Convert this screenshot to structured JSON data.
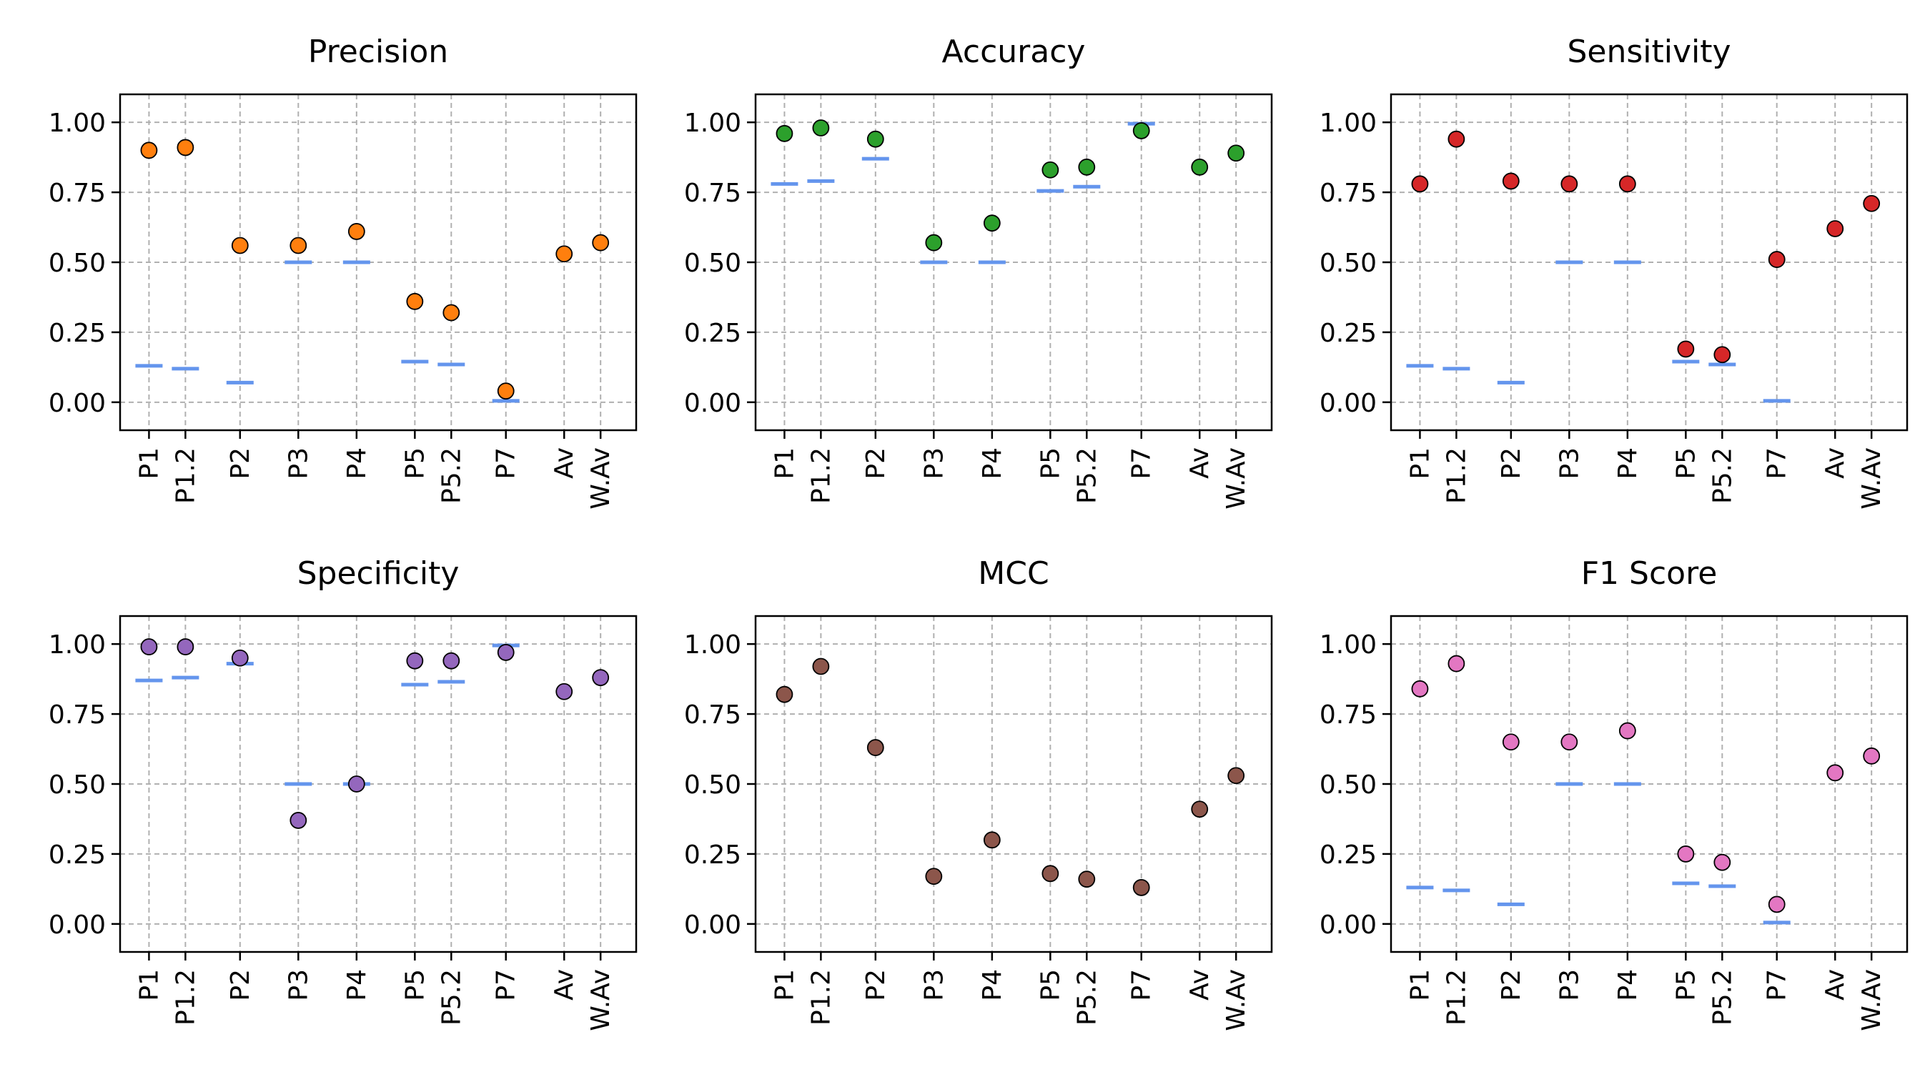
{
  "chart_data": [
    {
      "type": "scatter",
      "title": "Precision",
      "color": "#ff7f0e",
      "categories": [
        "P1",
        "P1.2",
        "P2",
        "P3",
        "P4",
        "P5",
        "P5.2",
        "P7",
        "Av",
        "W.Av"
      ],
      "x": [
        0,
        1,
        2.5,
        4.1,
        5.7,
        7.3,
        8.3,
        9.8,
        11.4,
        12.4
      ],
      "values": [
        0.9,
        0.91,
        0.56,
        0.56,
        0.61,
        0.36,
        0.32,
        0.04,
        0.53,
        0.57
      ],
      "baseline": [
        0.13,
        0.12,
        0.07,
        0.5,
        0.5,
        0.145,
        0.135,
        0.005,
        null,
        null
      ],
      "ylim": [
        -0.1,
        1.1
      ],
      "yticks": [
        "0.00",
        "0.25",
        "0.50",
        "0.75",
        "1.00"
      ],
      "ytick_values": [
        0,
        0.25,
        0.5,
        0.75,
        1.0
      ],
      "grid": true
    },
    {
      "type": "scatter",
      "title": "Accuracy",
      "color": "#2ca02c",
      "categories": [
        "P1",
        "P1.2",
        "P2",
        "P3",
        "P4",
        "P5",
        "P5.2",
        "P7",
        "Av",
        "W.Av"
      ],
      "x": [
        0,
        1,
        2.5,
        4.1,
        5.7,
        7.3,
        8.3,
        9.8,
        11.4,
        12.4
      ],
      "values": [
        0.96,
        0.98,
        0.94,
        0.57,
        0.64,
        0.83,
        0.84,
        0.97,
        0.84,
        0.89
      ],
      "baseline": [
        0.78,
        0.79,
        0.87,
        0.5,
        0.5,
        0.755,
        0.77,
        0.995,
        null,
        null
      ],
      "ylim": [
        -0.1,
        1.1
      ],
      "yticks": [
        "0.00",
        "0.25",
        "0.50",
        "0.75",
        "1.00"
      ],
      "ytick_values": [
        0,
        0.25,
        0.5,
        0.75,
        1.0
      ],
      "grid": true
    },
    {
      "type": "scatter",
      "title": "Sensitivity",
      "color": "#d62728",
      "categories": [
        "P1",
        "P1.2",
        "P2",
        "P3",
        "P4",
        "P5",
        "P5.2",
        "P7",
        "Av",
        "W.Av"
      ],
      "x": [
        0,
        1,
        2.5,
        4.1,
        5.7,
        7.3,
        8.3,
        9.8,
        11.4,
        12.4
      ],
      "values": [
        0.78,
        0.94,
        0.79,
        0.78,
        0.78,
        0.19,
        0.17,
        0.51,
        0.62,
        0.71
      ],
      "baseline": [
        0.13,
        0.12,
        0.07,
        0.5,
        0.5,
        0.145,
        0.135,
        0.005,
        null,
        null
      ],
      "ylim": [
        -0.1,
        1.1
      ],
      "yticks": [
        "0.00",
        "0.25",
        "0.50",
        "0.75",
        "1.00"
      ],
      "ytick_values": [
        0,
        0.25,
        0.5,
        0.75,
        1.0
      ],
      "grid": true
    },
    {
      "type": "scatter",
      "title": "Specificity",
      "color": "#9467bd",
      "categories": [
        "P1",
        "P1.2",
        "P2",
        "P3",
        "P4",
        "P5",
        "P5.2",
        "P7",
        "Av",
        "W.Av"
      ],
      "x": [
        0,
        1,
        2.5,
        4.1,
        5.7,
        7.3,
        8.3,
        9.8,
        11.4,
        12.4
      ],
      "values": [
        0.99,
        0.99,
        0.95,
        0.37,
        0.5,
        0.94,
        0.94,
        0.97,
        0.83,
        0.88
      ],
      "baseline": [
        0.87,
        0.88,
        0.93,
        0.5,
        0.5,
        0.855,
        0.865,
        0.995,
        null,
        null
      ],
      "ylim": [
        -0.1,
        1.1
      ],
      "yticks": [
        "0.00",
        "0.25",
        "0.50",
        "0.75",
        "1.00"
      ],
      "ytick_values": [
        0,
        0.25,
        0.5,
        0.75,
        1.0
      ],
      "grid": true
    },
    {
      "type": "scatter",
      "title": "MCC",
      "color": "#8c564b",
      "categories": [
        "P1",
        "P1.2",
        "P2",
        "P3",
        "P4",
        "P5",
        "P5.2",
        "P7",
        "Av",
        "W.Av"
      ],
      "x": [
        0,
        1,
        2.5,
        4.1,
        5.7,
        7.3,
        8.3,
        9.8,
        11.4,
        12.4
      ],
      "values": [
        0.82,
        0.92,
        0.63,
        0.17,
        0.3,
        0.18,
        0.16,
        0.13,
        0.41,
        0.53
      ],
      "baseline": [
        null,
        null,
        null,
        null,
        null,
        null,
        null,
        null,
        null,
        null
      ],
      "ylim": [
        -0.1,
        1.1
      ],
      "yticks": [
        "0.00",
        "0.25",
        "0.50",
        "0.75",
        "1.00"
      ],
      "ytick_values": [
        0,
        0.25,
        0.5,
        0.75,
        1.0
      ],
      "grid": true
    },
    {
      "type": "scatter",
      "title": "F1 Score",
      "color": "#e377c2",
      "categories": [
        "P1",
        "P1.2",
        "P2",
        "P3",
        "P4",
        "P5",
        "P5.2",
        "P7",
        "Av",
        "W.Av"
      ],
      "x": [
        0,
        1,
        2.5,
        4.1,
        5.7,
        7.3,
        8.3,
        9.8,
        11.4,
        12.4
      ],
      "values": [
        0.84,
        0.93,
        0.65,
        0.65,
        0.69,
        0.25,
        0.22,
        0.07,
        0.54,
        0.6
      ],
      "baseline": [
        0.13,
        0.12,
        0.07,
        0.5,
        0.5,
        0.145,
        0.135,
        0.005,
        null,
        null
      ],
      "ylim": [
        -0.1,
        1.1
      ],
      "yticks": [
        "0.00",
        "0.25",
        "0.50",
        "0.75",
        "1.00"
      ],
      "ytick_values": [
        0,
        0.25,
        0.5,
        0.75,
        1.0
      ],
      "grid": true
    }
  ]
}
